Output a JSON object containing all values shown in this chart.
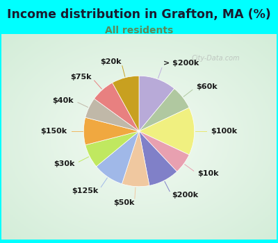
{
  "title": "Income distribution in Grafton, MA (%)",
  "subtitle": "All residents",
  "watermark": "City-Data.com",
  "background_outer": "#00FFFF",
  "background_inner": "#d4ede4",
  "title_color": "#1a1a2e",
  "subtitle_color": "#5a8a5a",
  "title_fontsize": 12.5,
  "subtitle_fontsize": 10,
  "label_fontsize": 8,
  "labels": [
    "> $200k",
    "$60k",
    "$100k",
    "$10k",
    "$200k",
    "$50k",
    "$125k",
    "$30k",
    "$150k",
    "$40k",
    "$75k",
    "$20k"
  ],
  "values": [
    11,
    7,
    14,
    6,
    9,
    8,
    9,
    7,
    8,
    6,
    7,
    8
  ],
  "colors": [
    "#b8aad8",
    "#b0c8a0",
    "#f0f080",
    "#e8a0b0",
    "#8080c8",
    "#f0c8a0",
    "#a0b8e8",
    "#c0e860",
    "#f0a840",
    "#c0b8a8",
    "#e88080",
    "#c8a020"
  ],
  "line_colors": [
    "#c0b0e0",
    "#b0c8a0",
    "#e8e870",
    "#e8a0b0",
    "#8080c8",
    "#f0c8a0",
    "#a0b8e8",
    "#c0e860",
    "#f0b860",
    "#c0b8a8",
    "#e88080",
    "#c8a020"
  ]
}
